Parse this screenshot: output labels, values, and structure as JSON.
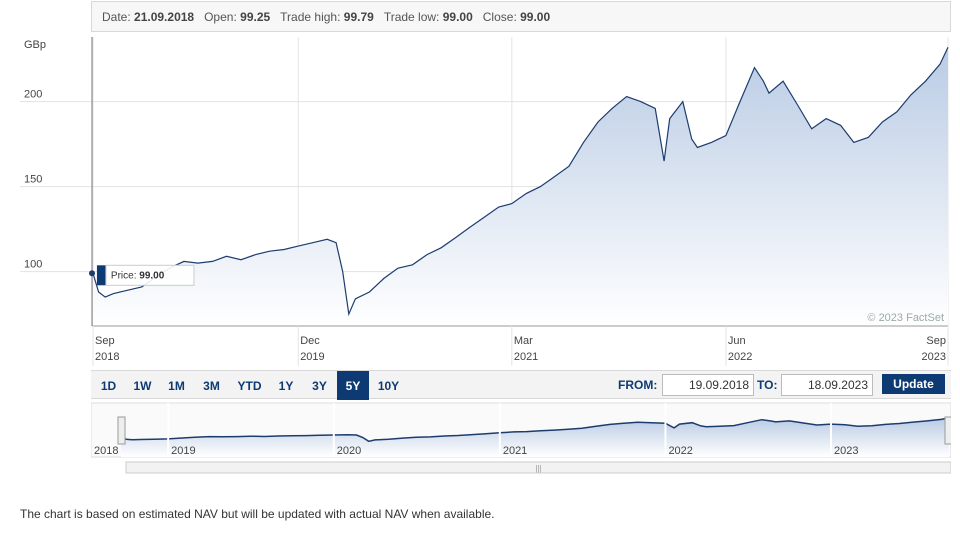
{
  "info_bar": {
    "date_label": "Date:",
    "date": "21.09.2018",
    "open_label": "Open:",
    "open": "99.25",
    "high_label": "Trade high:",
    "high": "99.79",
    "low_label": "Trade low:",
    "low": "99.00",
    "close_label": "Close:",
    "close": "99.00"
  },
  "tooltip": {
    "label": "Price:",
    "value": "99.00"
  },
  "watermark": "© 2023 FactSet",
  "range_buttons": [
    "1D",
    "1W",
    "1M",
    "3M",
    "YTD",
    "1Y",
    "3Y",
    "5Y",
    "10Y"
  ],
  "active_range": "5Y",
  "date_range": {
    "from_label": "FROM:",
    "from": "19.09.2018",
    "to_label": "TO:",
    "to": "18.09.2023",
    "update_label": "Update"
  },
  "navigator": {
    "year_labels": [
      "2018",
      "2019",
      "2020",
      "2021",
      "2022",
      "2023"
    ]
  },
  "footnote": "The chart is based on estimated NAV but will be updated with actual NAV when available.",
  "colors": {
    "line": "#1d3c6e",
    "fill_top": "#b9cbe4",
    "fill_bottom": "#ffffff",
    "accent": "#0d3a73"
  },
  "chart_data": {
    "type": "area",
    "title": "",
    "ylabel": "GBp",
    "ylim": [
      68,
      238
    ],
    "yticks": [
      100,
      150,
      200
    ],
    "xlim": [
      "2018-09-19",
      "2023-09-18"
    ],
    "xticks": [
      {
        "date": "2018-09-19",
        "month": "Sep",
        "year": "2018"
      },
      {
        "date": "2019-12-01",
        "month": "Dec",
        "year": "2019"
      },
      {
        "date": "2021-03-01",
        "month": "Mar",
        "year": "2021"
      },
      {
        "date": "2022-06-01",
        "month": "Jun",
        "year": "2022"
      },
      {
        "date": "2023-09-18",
        "month": "Sep",
        "year": "2023"
      }
    ],
    "grid": true,
    "highlighted_point": {
      "date": "2018-09-21",
      "value": 99.0
    },
    "series": [
      {
        "name": "",
        "points": [
          [
            "2018-09-19",
            99
          ],
          [
            "2018-10-01",
            88
          ],
          [
            "2018-10-15",
            85
          ],
          [
            "2018-11-01",
            87
          ],
          [
            "2018-12-01",
            89
          ],
          [
            "2019-01-01",
            91
          ],
          [
            "2019-02-01",
            97
          ],
          [
            "2019-03-01",
            102
          ],
          [
            "2019-04-01",
            106
          ],
          [
            "2019-05-01",
            105
          ],
          [
            "2019-06-01",
            106
          ],
          [
            "2019-07-01",
            109
          ],
          [
            "2019-08-01",
            107
          ],
          [
            "2019-09-01",
            110
          ],
          [
            "2019-10-01",
            112
          ],
          [
            "2019-11-01",
            113
          ],
          [
            "2019-12-01",
            115
          ],
          [
            "2020-01-01",
            117
          ],
          [
            "2020-02-01",
            119
          ],
          [
            "2020-02-20",
            117
          ],
          [
            "2020-03-05",
            100
          ],
          [
            "2020-03-18",
            75
          ],
          [
            "2020-04-01",
            84
          ],
          [
            "2020-05-01",
            88
          ],
          [
            "2020-06-01",
            96
          ],
          [
            "2020-07-01",
            102
          ],
          [
            "2020-08-01",
            104
          ],
          [
            "2020-09-01",
            110
          ],
          [
            "2020-10-01",
            114
          ],
          [
            "2020-11-01",
            120
          ],
          [
            "2020-12-01",
            126
          ],
          [
            "2021-01-01",
            132
          ],
          [
            "2021-02-01",
            138
          ],
          [
            "2021-03-01",
            140
          ],
          [
            "2021-04-01",
            146
          ],
          [
            "2021-05-01",
            150
          ],
          [
            "2021-06-01",
            156
          ],
          [
            "2021-07-01",
            162
          ],
          [
            "2021-08-01",
            176
          ],
          [
            "2021-09-01",
            188
          ],
          [
            "2021-10-01",
            196
          ],
          [
            "2021-11-01",
            203
          ],
          [
            "2021-12-01",
            200
          ],
          [
            "2022-01-01",
            196
          ],
          [
            "2022-01-20",
            165
          ],
          [
            "2022-02-01",
            190
          ],
          [
            "2022-03-01",
            200
          ],
          [
            "2022-03-20",
            178
          ],
          [
            "2022-04-01",
            173
          ],
          [
            "2022-05-01",
            176
          ],
          [
            "2022-06-01",
            180
          ],
          [
            "2022-07-01",
            200
          ],
          [
            "2022-08-01",
            220
          ],
          [
            "2022-08-20",
            212
          ],
          [
            "2022-09-01",
            205
          ],
          [
            "2022-10-01",
            212
          ],
          [
            "2022-11-01",
            198
          ],
          [
            "2022-12-01",
            184
          ],
          [
            "2023-01-01",
            190
          ],
          [
            "2023-02-01",
            186
          ],
          [
            "2023-03-01",
            176
          ],
          [
            "2023-04-01",
            179
          ],
          [
            "2023-05-01",
            188
          ],
          [
            "2023-06-01",
            194
          ],
          [
            "2023-07-01",
            204
          ],
          [
            "2023-08-01",
            212
          ],
          [
            "2023-09-01",
            222
          ],
          [
            "2023-09-18",
            232
          ]
        ]
      }
    ]
  }
}
